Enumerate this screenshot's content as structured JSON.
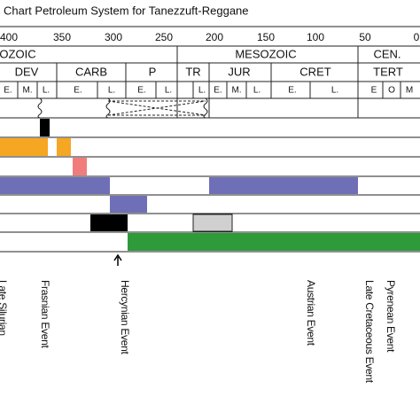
{
  "header": {
    "title": "Chart Petroleum System for Tanezzuft-Reggane"
  },
  "time_ticks": [
    "400",
    "350",
    "300",
    "250",
    "200",
    "150",
    "100",
    "50",
    "0"
  ],
  "eras": [
    "OZOIC",
    "MESOZOIC",
    "CEN."
  ],
  "periods": [
    "DEV",
    "CARB",
    "P",
    "TR",
    "JUR",
    "CRET",
    "TERT"
  ],
  "epochs": [
    "E.",
    "M.",
    "L.",
    "E.",
    "L.",
    "E.",
    "L.",
    "L.",
    "E.",
    "M.",
    "L.",
    "E.",
    "L.",
    "E",
    "O",
    "M"
  ],
  "events": [
    "Late Silurian",
    "Frasnian Event",
    "Hercynian Event",
    "Austrian Event",
    "Late Cretaceous Event",
    "Pyrenean Event"
  ]
}
